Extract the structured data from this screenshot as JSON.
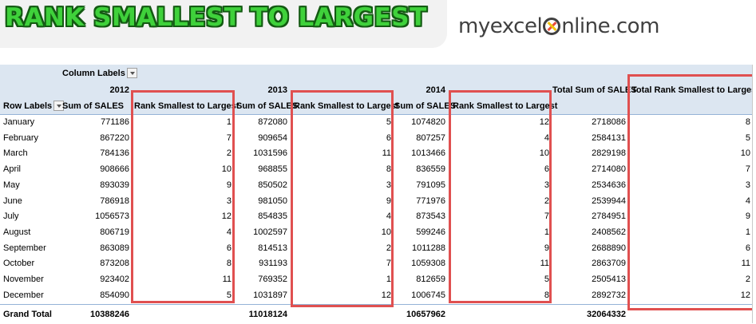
{
  "banner": {
    "title": "RANK SMALLEST TO LARGEST",
    "logo_pre": "myexcel",
    "logo_post": "nline.com"
  },
  "pivot": {
    "column_labels": "Column Labels",
    "row_labels": "Row Labels",
    "years": [
      "2012",
      "2013",
      "2014"
    ],
    "sum_header": "Sum of SALES",
    "rank_header": "Rank Smallest to Largest",
    "total_sum_header": "Total Sum of SALES",
    "total_rank_header": "Total Rank Smallest to Largest",
    "rows": [
      {
        "month": "January",
        "v": [
          "771186",
          "1",
          "872080",
          "5",
          "1074820",
          "12",
          "2718086",
          "8"
        ]
      },
      {
        "month": "February",
        "v": [
          "867220",
          "7",
          "909654",
          "6",
          "807257",
          "4",
          "2584131",
          "5"
        ]
      },
      {
        "month": "March",
        "v": [
          "784136",
          "2",
          "1031596",
          "11",
          "1013466",
          "10",
          "2829198",
          "10"
        ]
      },
      {
        "month": "April",
        "v": [
          "908666",
          "10",
          "968855",
          "8",
          "836559",
          "6",
          "2714080",
          "7"
        ]
      },
      {
        "month": "May",
        "v": [
          "893039",
          "9",
          "850502",
          "3",
          "791095",
          "3",
          "2534636",
          "3"
        ]
      },
      {
        "month": "June",
        "v": [
          "786918",
          "3",
          "981050",
          "9",
          "771976",
          "2",
          "2539944",
          "4"
        ]
      },
      {
        "month": "July",
        "v": [
          "1056573",
          "12",
          "854835",
          "4",
          "873543",
          "7",
          "2784951",
          "9"
        ]
      },
      {
        "month": "August",
        "v": [
          "806719",
          "4",
          "1002597",
          "10",
          "599246",
          "1",
          "2408562",
          "1"
        ]
      },
      {
        "month": "September",
        "v": [
          "863089",
          "6",
          "814513",
          "2",
          "1011288",
          "9",
          "2688890",
          "6"
        ]
      },
      {
        "month": "October",
        "v": [
          "873208",
          "8",
          "931193",
          "7",
          "1059308",
          "11",
          "2863709",
          "11"
        ]
      },
      {
        "month": "November",
        "v": [
          "923402",
          "11",
          "769352",
          "1",
          "812659",
          "5",
          "2505413",
          "2"
        ]
      },
      {
        "month": "December",
        "v": [
          "854090",
          "5",
          "1031897",
          "12",
          "1006745",
          "8",
          "2892732",
          "12"
        ]
      }
    ],
    "grand_total": {
      "label": "Grand Total",
      "v": [
        "10388246",
        "",
        "11018124",
        "",
        "10657962",
        "",
        "32064332",
        ""
      ]
    }
  },
  "colors": {
    "title_green": "#3fd13b",
    "header_bg": "#dce6f1",
    "highlight_red": "#e05050"
  }
}
